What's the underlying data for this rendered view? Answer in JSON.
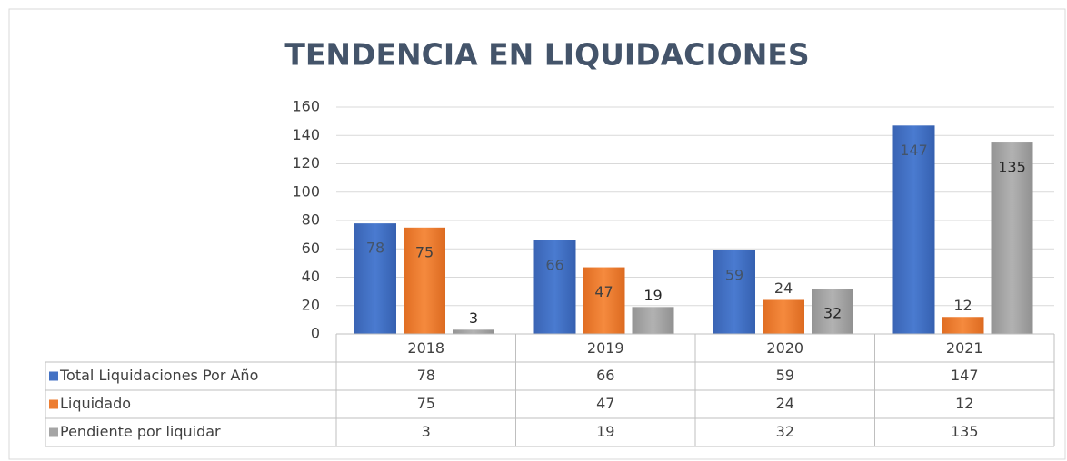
{
  "chart_data": {
    "type": "bar",
    "title": "TENDENCIA EN LIQUIDACIONES",
    "categories": [
      "2018",
      "2019",
      "2020",
      "2021"
    ],
    "series": [
      {
        "name": "Total Liquidaciones Por Año",
        "color": "#4472c4",
        "values": [
          78,
          66,
          59,
          147
        ]
      },
      {
        "name": "Liquidado",
        "color": "#ed7d31",
        "values": [
          75,
          47,
          24,
          12
        ]
      },
      {
        "name": "Pendiente por liquidar",
        "color": "#a5a5a5",
        "values": [
          3,
          19,
          32,
          135
        ]
      }
    ],
    "ylim": [
      0,
      160
    ],
    "yticks": [
      0,
      20,
      40,
      60,
      80,
      100,
      120,
      140,
      160
    ],
    "grid": true
  }
}
